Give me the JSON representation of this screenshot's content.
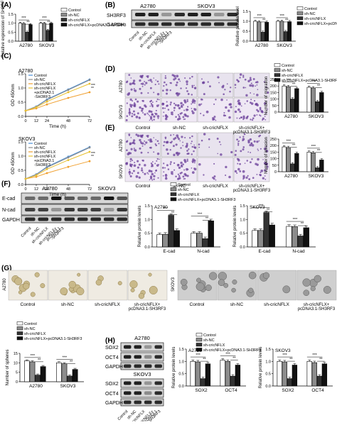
{
  "panels": {
    "A": {
      "letter": "(A)"
    },
    "B": {
      "letter": "(B)"
    },
    "C": {
      "letter": "(C)"
    },
    "D": {
      "letter": "(D)"
    },
    "E": {
      "letter": "(E)"
    },
    "F": {
      "letter": "(F)"
    },
    "G": {
      "letter": "(G)"
    },
    "H": {
      "letter": "(H)"
    }
  },
  "groups": [
    "Control",
    "sh-NC",
    "sh-cricNFLX",
    "sh-cricNFLX+pcDNA3.1-SH3RF3"
  ],
  "group_labels_multiline": {
    "control": "Control",
    "shnc": "sh-NC",
    "shcirc": "sh-cricNFLX",
    "combo1": "sh-cricNFLX",
    "combo2": "+pcDNA3.1",
    "combo3": "-SH3RF3",
    "combo_a": "sh-cricNFLX+",
    "combo_b": "pcDNA3.1",
    "combo_c": "-SH3RF3"
  },
  "cell_lines": [
    "A2780",
    "SKOV3"
  ],
  "sig": {
    "s3": "***",
    "s2": "**",
    "s1": "*"
  },
  "blot_labels": {
    "sh3rf3": "SH3RF3",
    "gapdh": "GAPDH",
    "ecad": "E-cad",
    "ncad": "N-cad",
    "sox2": "SOX2",
    "oct4": "OCT4"
  },
  "colors": {
    "control": "#ffffff",
    "shnc": "#8c8c8c",
    "shcirc": "#333333",
    "combo": "#111111",
    "orange": "#f0a030",
    "blue": "#4a90d9",
    "crystal": "#6a3d9a"
  },
  "chart_data": [
    {
      "panel": "A",
      "type": "bar",
      "ylabel": "Relative expression of SH3RF3",
      "categories": [
        "A2780",
        "SKOV3"
      ],
      "ylim": [
        0,
        1.5
      ],
      "yticks": [
        "0.0",
        "0.5",
        "1.0",
        "1.5"
      ],
      "series": [
        {
          "name": "Control",
          "values": [
            1.0,
            1.0
          ]
        },
        {
          "name": "sh-NC",
          "values": [
            0.98,
            0.99
          ]
        },
        {
          "name": "sh-cricNFLX",
          "values": [
            0.5,
            0.6
          ]
        },
        {
          "name": "sh-cricNFLX+pcDNA3.1-SH3RF3",
          "values": [
            0.92,
            1.0
          ]
        }
      ]
    },
    {
      "panel": "B",
      "type": "bar",
      "ylabel": "Relative protein level",
      "categories": [
        "A2780",
        "SKOV3"
      ],
      "ylim": [
        0,
        1.5
      ],
      "yticks": [
        "0.0",
        "0.5",
        "1.0",
        "1.5"
      ],
      "series": [
        {
          "name": "Control",
          "values": [
            1.0,
            1.0
          ]
        },
        {
          "name": "sh-NC",
          "values": [
            0.97,
            1.0
          ]
        },
        {
          "name": "sh-cricNFLX",
          "values": [
            0.45,
            0.48
          ]
        },
        {
          "name": "sh-cricNFLX+pcDNA3.1-SH3RF3",
          "values": [
            0.95,
            0.98
          ]
        }
      ]
    },
    {
      "panel": "C-A2780",
      "type": "line",
      "title": "A2780",
      "xlabel": "Time (h)",
      "ylabel": "OD 450nm",
      "x": [
        0,
        12,
        24,
        48,
        72
      ],
      "ylim": [
        0.0,
        1.5
      ],
      "yticks": [
        "0.0",
        "0.5",
        "1.0",
        "1.5"
      ],
      "series": [
        {
          "name": "Control",
          "values": [
            0.2,
            0.35,
            0.6,
            0.95,
            1.3
          ]
        },
        {
          "name": "sh-NC",
          "values": [
            0.2,
            0.34,
            0.58,
            0.93,
            1.28
          ]
        },
        {
          "name": "sh-cricNFLX",
          "values": [
            0.2,
            0.28,
            0.42,
            0.65,
            0.85
          ]
        },
        {
          "name": "sh-cricNFLX+pcDNA3.1-SH3RF3",
          "values": [
            0.2,
            0.32,
            0.52,
            0.85,
            1.15
          ]
        }
      ]
    },
    {
      "panel": "C-SKOV3",
      "type": "line",
      "title": "SKOV3",
      "xlabel": "Time (h)",
      "ylabel": "OD 450nm",
      "x": [
        0,
        12,
        24,
        48,
        72
      ],
      "ylim": [
        0.0,
        1.5
      ],
      "yticks": [
        "0.0",
        "0.5",
        "1.0",
        "1.5"
      ],
      "series": [
        {
          "name": "Control",
          "values": [
            0.2,
            0.36,
            0.62,
            0.98,
            1.32
          ]
        },
        {
          "name": "sh-NC",
          "values": [
            0.2,
            0.35,
            0.6,
            0.95,
            1.3
          ]
        },
        {
          "name": "sh-cricNFLX",
          "values": [
            0.2,
            0.27,
            0.4,
            0.62,
            0.82
          ]
        },
        {
          "name": "sh-cricNFLX+pcDNA3.1-SH3RF3",
          "values": [
            0.2,
            0.32,
            0.54,
            0.86,
            1.15
          ]
        }
      ]
    },
    {
      "panel": "D",
      "type": "bar",
      "ylabel": "Number of migration",
      "categories": [
        "A2780",
        "SKOV3"
      ],
      "ylim": [
        0,
        250
      ],
      "yticks": [
        "0",
        "50",
        "100",
        "150",
        "200",
        "250"
      ],
      "series": [
        {
          "name": "Control",
          "values": [
            200,
            190
          ]
        },
        {
          "name": "sh-NC",
          "values": [
            195,
            185
          ]
        },
        {
          "name": "sh-cricNFLX",
          "values": [
            100,
            80
          ]
        },
        {
          "name": "sh-cricNFLX+pcDNA3.1-SH3RF3",
          "values": [
            180,
            150
          ]
        }
      ]
    },
    {
      "panel": "E",
      "type": "bar",
      "ylabel": "Number of invasion",
      "categories": [
        "A2780",
        "SKOV3"
      ],
      "ylim": [
        0,
        250
      ],
      "yticks": [
        "0",
        "50",
        "100",
        "150",
        "200",
        "250"
      ],
      "series": [
        {
          "name": "Control",
          "values": [
            190,
            150
          ]
        },
        {
          "name": "sh-NC",
          "values": [
            185,
            145
          ]
        },
        {
          "name": "sh-cricNFLX",
          "values": [
            60,
            30
          ]
        },
        {
          "name": "sh-cricNFLX+pcDNA3.1-SH3RF3",
          "values": [
            140,
            90
          ]
        }
      ]
    },
    {
      "panel": "F-A2780",
      "type": "bar",
      "title": "A2780",
      "ylabel": "Relative protein levels",
      "categories": [
        "E-cad",
        "N-cad"
      ],
      "ylim": [
        0,
        1.5
      ],
      "yticks": [
        "0.0",
        "0.5",
        "1.0",
        "1.5"
      ],
      "series": [
        {
          "name": "Control",
          "values": [
            0.45,
            0.5
          ]
        },
        {
          "name": "sh-NC",
          "values": [
            0.46,
            0.5
          ]
        },
        {
          "name": "sh-cricNFLX",
          "values": [
            1.15,
            0.3
          ]
        },
        {
          "name": "sh-cricNFLX+pcDNA3.1-SH3RF3",
          "values": [
            0.6,
            0.95
          ]
        }
      ]
    },
    {
      "panel": "F-SKOV3",
      "type": "bar",
      "title": "SKOV3",
      "ylabel": "Relative protein levels",
      "categories": [
        "E-cad",
        "N-cad"
      ],
      "ylim": [
        0,
        1.5
      ],
      "yticks": [
        "0.0",
        "0.5",
        "1.0",
        "1.5"
      ],
      "series": [
        {
          "name": "Control",
          "values": [
            0.6,
            0.75
          ]
        },
        {
          "name": "sh-NC",
          "values": [
            0.6,
            0.74
          ]
        },
        {
          "name": "sh-cricNFLX",
          "values": [
            1.25,
            0.4
          ]
        },
        {
          "name": "sh-cricNFLX+pcDNA3.1-SH3RF3",
          "values": [
            0.8,
            0.7
          ]
        }
      ]
    },
    {
      "panel": "G",
      "type": "bar",
      "ylabel": "Number of spheres",
      "categories": [
        "A2780",
        "SKOV3"
      ],
      "ylim": [
        0,
        15
      ],
      "yticks": [
        "0",
        "5",
        "10",
        "15"
      ],
      "series": [
        {
          "name": "Control",
          "values": [
            11,
            10
          ]
        },
        {
          "name": "sh-NC",
          "values": [
            10.5,
            9.5
          ]
        },
        {
          "name": "sh-cricNFLX",
          "values": [
            3.5,
            3
          ]
        },
        {
          "name": "sh-cricNFLX+pcDNA3.1-SH3RF3",
          "values": [
            8,
            6.5
          ]
        }
      ]
    },
    {
      "panel": "H-A2780",
      "type": "bar",
      "title": "A2780",
      "ylabel": "Relative protein levels",
      "categories": [
        "SOX2",
        "OCT4"
      ],
      "ylim": [
        0,
        1.5
      ],
      "yticks": [
        "0.0",
        "0.5",
        "1.0",
        "1.5"
      ],
      "series": [
        {
          "name": "Control",
          "values": [
            1.0,
            1.05
          ]
        },
        {
          "name": "sh-NC",
          "values": [
            0.98,
            1.0
          ]
        },
        {
          "name": "sh-cricNFLX",
          "values": [
            0.3,
            0.4
          ]
        },
        {
          "name": "sh-cricNFLX+pcDNA3.1-SH3RF3",
          "values": [
            0.9,
            0.85
          ]
        }
      ]
    },
    {
      "panel": "H-SKOV3",
      "type": "bar",
      "title": "SKOV3",
      "ylabel": "Relative protein levels",
      "categories": [
        "SOX2",
        "OCT4"
      ],
      "ylim": [
        0,
        1.5
      ],
      "yticks": [
        "0.0",
        "0.5",
        "1.0",
        "1.5"
      ],
      "series": [
        {
          "name": "Control",
          "values": [
            1.0,
            1.0
          ]
        },
        {
          "name": "sh-NC",
          "values": [
            0.98,
            0.95
          ]
        },
        {
          "name": "sh-cricNFLX",
          "values": [
            0.3,
            0.4
          ]
        },
        {
          "name": "sh-cricNFLX+pcDNA3.1-SH3RF3",
          "values": [
            0.85,
            0.9
          ]
        }
      ]
    }
  ]
}
